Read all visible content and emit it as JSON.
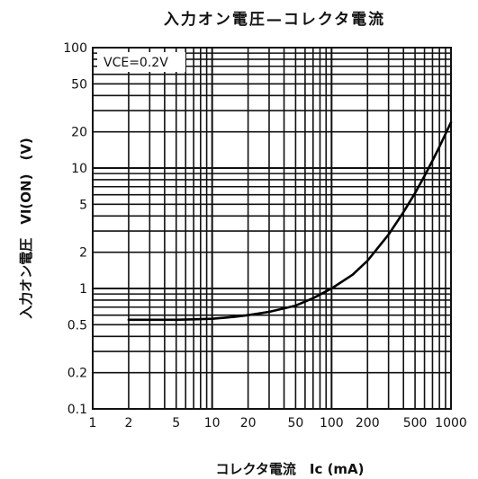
{
  "chart_data": {
    "type": "line",
    "title": "入力オン電圧—コレクタ電流",
    "xlabel": "コレクタ電流　Ic (mA)",
    "ylabel": "入力オン電圧　VI(ON)　(V)",
    "annotation": "VCE=0.2V",
    "x_scale": "log",
    "y_scale": "log",
    "xlim": [
      1,
      1000
    ],
    "ylim": [
      0.1,
      100
    ],
    "grid": true,
    "x_ticks": [
      {
        "value": 1,
        "label": "1"
      },
      {
        "value": 2,
        "label": "2"
      },
      {
        "value": 5,
        "label": "5"
      },
      {
        "value": 10,
        "label": "10"
      },
      {
        "value": 20,
        "label": "20"
      },
      {
        "value": 50,
        "label": "50"
      },
      {
        "value": 100,
        "label": "100"
      },
      {
        "value": 200,
        "label": "200"
      },
      {
        "value": 500,
        "label": "500"
      },
      {
        "value": 1000,
        "label": "1000"
      }
    ],
    "y_ticks": [
      {
        "value": 0.1,
        "label": "0.1"
      },
      {
        "value": 0.2,
        "label": "0.2"
      },
      {
        "value": 0.5,
        "label": "0.5"
      },
      {
        "value": 1,
        "label": "1"
      },
      {
        "value": 2,
        "label": "2"
      },
      {
        "value": 5,
        "label": "5"
      },
      {
        "value": 10,
        "label": "10"
      },
      {
        "value": 20,
        "label": "20"
      },
      {
        "value": 50,
        "label": "50"
      },
      {
        "value": 100,
        "label": "100"
      }
    ],
    "series": [
      {
        "color": "#000000",
        "x": [
          2,
          3,
          5,
          7,
          10,
          15,
          20,
          30,
          50,
          70,
          100,
          150,
          200,
          300,
          400,
          500,
          600,
          700,
          800,
          900,
          1000
        ],
        "y": [
          0.55,
          0.55,
          0.55,
          0.555,
          0.56,
          0.58,
          0.6,
          0.64,
          0.72,
          0.83,
          1.0,
          1.3,
          1.7,
          2.8,
          4.3,
          6.2,
          8.6,
          11.5,
          15.0,
          19.2,
          24.0
        ]
      }
    ]
  }
}
